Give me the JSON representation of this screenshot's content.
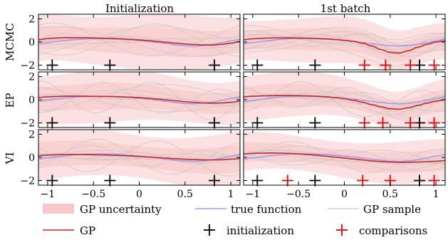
{
  "chart_data": {
    "type": "line",
    "column_titles": [
      "Initialization",
      "1st batch"
    ],
    "row_labels": [
      "MCMC",
      "EP",
      "VI"
    ],
    "xlim": [
      -1.1,
      1.1
    ],
    "ylim": [
      -2.4,
      2.4
    ],
    "x_ticks": [
      -1,
      -0.5,
      0,
      0.5,
      1
    ],
    "x_tick_labels": [
      "−1",
      "−0.5",
      "0",
      "0.5",
      "1"
    ],
    "y_ticks": [
      -2,
      0,
      2
    ],
    "y_tick_labels": [
      "−2",
      "0",
      "2"
    ],
    "legend": {
      "placement": "bottom",
      "entries": [
        {
          "key": "uncertainty",
          "label": "GP uncertainty"
        },
        {
          "key": "true",
          "label": "true function"
        },
        {
          "key": "sample",
          "label": "GP sample"
        },
        {
          "key": "gp",
          "label": "GP"
        },
        {
          "key": "init",
          "label": "initialization"
        },
        {
          "key": "comp",
          "label": "comparisons"
        }
      ]
    },
    "colors": {
      "uncertainty": "#f8c8c8",
      "true": "#9b9bef",
      "sample": "#c8c8c8",
      "gp": "#dd1f1f",
      "init": "#000000",
      "comp": "#ee0000"
    },
    "x": [
      -1.1,
      -1.0,
      -0.9,
      -0.8,
      -0.7,
      -0.6,
      -0.5,
      -0.4,
      -0.3,
      -0.2,
      -0.1,
      0.0,
      0.1,
      0.2,
      0.3,
      0.4,
      0.5,
      0.6,
      0.7,
      0.8,
      0.9,
      1.0,
      1.1
    ],
    "true_function": [
      -0.15,
      -0.05,
      0.05,
      0.15,
      0.22,
      0.28,
      0.3,
      0.3,
      0.28,
      0.25,
      0.2,
      0.12,
      0.05,
      -0.05,
      -0.15,
      -0.25,
      -0.32,
      -0.35,
      -0.3,
      -0.2,
      -0.05,
      0.1,
      0.25
    ],
    "initialization_x": [
      -0.95,
      -0.32,
      0.82
    ],
    "initialization_y": -2,
    "panels": [
      {
        "row": 0,
        "col": 0,
        "gp": [
          0.2,
          0.3,
          0.35,
          0.38,
          0.38,
          0.37,
          0.35,
          0.32,
          0.3,
          0.27,
          0.23,
          0.18,
          0.12,
          0.05,
          -0.02,
          -0.1,
          -0.17,
          -0.22,
          -0.25,
          -0.26,
          -0.2,
          -0.1,
          0.05
        ],
        "band": 1.2,
        "comparisons_x": []
      },
      {
        "row": 0,
        "col": 1,
        "gp": [
          0.2,
          0.28,
          0.32,
          0.35,
          0.36,
          0.36,
          0.35,
          0.33,
          0.3,
          0.27,
          0.22,
          0.15,
          0.05,
          -0.1,
          -0.35,
          -0.65,
          -0.9,
          -0.95,
          -0.75,
          -0.45,
          -0.2,
          0.0,
          0.1
        ],
        "band": 1.0,
        "comparisons_x": [
          0.22,
          0.45,
          0.72,
          0.98
        ]
      },
      {
        "row": 1,
        "col": 0,
        "gp": [
          0.2,
          0.25,
          0.28,
          0.3,
          0.3,
          0.3,
          0.29,
          0.28,
          0.27,
          0.25,
          0.22,
          0.18,
          0.12,
          0.05,
          -0.02,
          -0.1,
          -0.17,
          -0.23,
          -0.28,
          -0.3,
          -0.28,
          -0.22,
          -0.12
        ],
        "band": 1.15,
        "comparisons_x": []
      },
      {
        "row": 1,
        "col": 1,
        "gp": [
          0.25,
          0.3,
          0.33,
          0.35,
          0.36,
          0.36,
          0.35,
          0.33,
          0.3,
          0.25,
          0.18,
          0.08,
          -0.05,
          -0.22,
          -0.42,
          -0.62,
          -0.78,
          -0.82,
          -0.7,
          -0.5,
          -0.3,
          -0.12,
          0.0
        ],
        "band": 1.0,
        "comparisons_x": [
          0.22,
          0.42,
          0.72,
          0.98
        ]
      },
      {
        "row": 2,
        "col": 0,
        "gp": [
          0.15,
          0.2,
          0.23,
          0.25,
          0.25,
          0.24,
          0.23,
          0.21,
          0.19,
          0.16,
          0.12,
          0.08,
          0.03,
          -0.02,
          -0.07,
          -0.12,
          -0.16,
          -0.19,
          -0.21,
          -0.22,
          -0.2,
          -0.16,
          -0.1
        ],
        "band": 1.15,
        "comparisons_x": []
      },
      {
        "row": 2,
        "col": 1,
        "gp": [
          0.3,
          0.35,
          0.37,
          0.38,
          0.37,
          0.34,
          0.3,
          0.25,
          0.18,
          0.1,
          0.02,
          -0.06,
          -0.14,
          -0.22,
          -0.3,
          -0.36,
          -0.4,
          -0.42,
          -0.42,
          -0.4,
          -0.37,
          -0.33,
          -0.28
        ],
        "band": 0.9,
        "comparisons_x": [
          -0.62,
          0.2,
          0.5,
          0.98
        ]
      }
    ]
  }
}
